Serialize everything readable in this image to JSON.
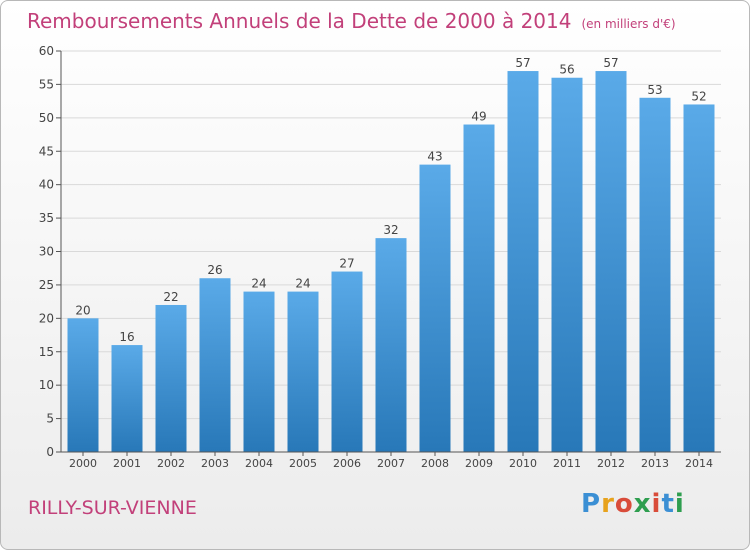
{
  "title": "Remboursements Annuels de la Dette de 2000 à 2014",
  "unit": "(en milliers d'€)",
  "place": "RILLY-SUR-VIENNE",
  "logo": "Proxiti",
  "colors": {
    "title": "#c2407a",
    "bar_light": "#5aaae8",
    "bar_dark": "#2878b8",
    "grid": "#d9d9d9"
  },
  "chart_data": {
    "type": "bar",
    "title": "Remboursements Annuels de la Dette de 2000 à 2014",
    "ylabel": "en milliers d'€",
    "categories": [
      "2000",
      "2001",
      "2002",
      "2003",
      "2004",
      "2005",
      "2006",
      "2007",
      "2008",
      "2009",
      "2010",
      "2011",
      "2012",
      "2013",
      "2014"
    ],
    "values": [
      20,
      16,
      22,
      26,
      24,
      24,
      27,
      32,
      43,
      49,
      57,
      56,
      57,
      53,
      52
    ],
    "ylim": [
      0,
      60
    ],
    "yticks": [
      0,
      5,
      10,
      15,
      20,
      25,
      30,
      35,
      40,
      45,
      50,
      55,
      60
    ],
    "grid": true
  }
}
